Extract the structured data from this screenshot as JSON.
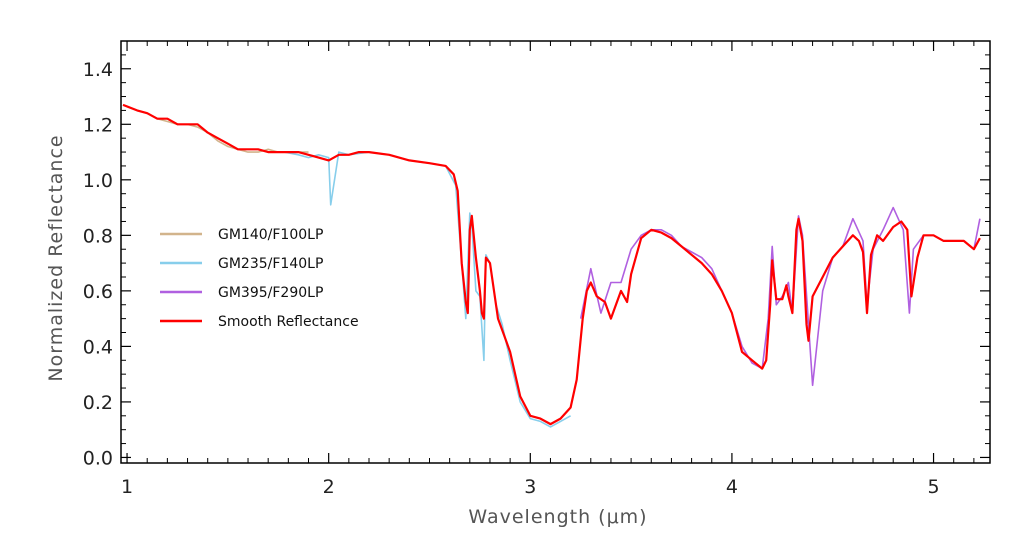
{
  "chart_data": {
    "type": "line",
    "title": "",
    "xlabel": "Wavelength (μm)",
    "ylabel": "Normalized Reflectance",
    "xlim": [
      0.97,
      5.28
    ],
    "ylim": [
      -0.02,
      1.5
    ],
    "x_ticks": [
      "1",
      "2",
      "3",
      "4",
      "5"
    ],
    "y_ticks": [
      "0.0",
      "0.2",
      "0.4",
      "0.6",
      "0.8",
      "1.0",
      "1.2",
      "1.4"
    ],
    "grid": false,
    "legend_position": "left-center",
    "series": [
      {
        "name": "GM140/F100LP",
        "color": "#d2b48c",
        "x": [
          0.98,
          1.05,
          1.1,
          1.15,
          1.2,
          1.25,
          1.3,
          1.35,
          1.4,
          1.45,
          1.5,
          1.55,
          1.6,
          1.65,
          1.7,
          1.75,
          1.8,
          1.85,
          1.9
        ],
        "y": [
          1.27,
          1.25,
          1.24,
          1.22,
          1.21,
          1.2,
          1.2,
          1.19,
          1.17,
          1.14,
          1.12,
          1.11,
          1.1,
          1.1,
          1.11,
          1.1,
          1.1,
          1.1,
          1.1
        ]
      },
      {
        "name": "GM235/F140LP",
        "color": "#87ceeb",
        "x": [
          1.78,
          1.85,
          1.9,
          1.95,
          2.0,
          2.01,
          2.05,
          2.1,
          2.2,
          2.3,
          2.4,
          2.5,
          2.58,
          2.63,
          2.66,
          2.68,
          2.7,
          2.71,
          2.73,
          2.75,
          2.77,
          2.78,
          2.8,
          2.83,
          2.86,
          2.9,
          2.95,
          3.0,
          3.05,
          3.1,
          3.15,
          3.2
        ],
        "y": [
          1.1,
          1.09,
          1.08,
          1.09,
          1.08,
          0.91,
          1.1,
          1.09,
          1.1,
          1.09,
          1.07,
          1.06,
          1.05,
          0.98,
          0.7,
          0.5,
          0.88,
          0.84,
          0.6,
          0.58,
          0.35,
          0.73,
          0.7,
          0.55,
          0.48,
          0.35,
          0.2,
          0.14,
          0.13,
          0.11,
          0.13,
          0.15
        ]
      },
      {
        "name": "GM395/F290LP",
        "color": "#b060e0",
        "x": [
          3.25,
          3.3,
          3.35,
          3.4,
          3.45,
          3.5,
          3.55,
          3.6,
          3.65,
          3.7,
          3.75,
          3.8,
          3.85,
          3.9,
          3.95,
          4.0,
          4.05,
          4.1,
          4.15,
          4.18,
          4.2,
          4.22,
          4.25,
          4.28,
          4.3,
          4.33,
          4.35,
          4.38,
          4.4,
          4.45,
          4.5,
          4.55,
          4.6,
          4.65,
          4.67,
          4.7,
          4.75,
          4.8,
          4.85,
          4.88,
          4.9,
          4.95,
          5.0,
          5.05,
          5.1,
          5.15,
          5.2,
          5.23
        ],
        "y": [
          0.5,
          0.68,
          0.52,
          0.63,
          0.63,
          0.75,
          0.8,
          0.82,
          0.82,
          0.8,
          0.76,
          0.74,
          0.72,
          0.68,
          0.6,
          0.52,
          0.4,
          0.34,
          0.32,
          0.5,
          0.76,
          0.55,
          0.58,
          0.63,
          0.52,
          0.87,
          0.8,
          0.48,
          0.26,
          0.6,
          0.72,
          0.76,
          0.86,
          0.78,
          0.55,
          0.75,
          0.82,
          0.9,
          0.82,
          0.52,
          0.75,
          0.8,
          0.8,
          0.78,
          0.78,
          0.78,
          0.75,
          0.86
        ]
      },
      {
        "name": "Smooth Reflectance",
        "color": "#ff0000",
        "x": [
          0.98,
          1.05,
          1.1,
          1.15,
          1.2,
          1.25,
          1.3,
          1.35,
          1.4,
          1.45,
          1.5,
          1.55,
          1.6,
          1.65,
          1.7,
          1.75,
          1.8,
          1.85,
          1.9,
          1.95,
          2.0,
          2.05,
          2.1,
          2.15,
          2.2,
          2.3,
          2.4,
          2.5,
          2.58,
          2.62,
          2.64,
          2.66,
          2.68,
          2.69,
          2.7,
          2.71,
          2.73,
          2.75,
          2.76,
          2.77,
          2.78,
          2.8,
          2.82,
          2.84,
          2.87,
          2.9,
          2.95,
          3.0,
          3.05,
          3.1,
          3.15,
          3.2,
          3.23,
          3.26,
          3.28,
          3.3,
          3.33,
          3.37,
          3.4,
          3.45,
          3.48,
          3.5,
          3.55,
          3.6,
          3.65,
          3.7,
          3.75,
          3.8,
          3.85,
          3.9,
          3.95,
          4.0,
          4.05,
          4.1,
          4.15,
          4.17,
          4.19,
          4.2,
          4.22,
          4.25,
          4.27,
          4.28,
          4.3,
          4.32,
          4.33,
          4.35,
          4.37,
          4.38,
          4.4,
          4.45,
          4.5,
          4.55,
          4.6,
          4.63,
          4.65,
          4.67,
          4.69,
          4.72,
          4.75,
          4.8,
          4.84,
          4.87,
          4.89,
          4.92,
          4.95,
          5.0,
          5.05,
          5.1,
          5.15,
          5.2,
          5.23
        ],
        "y": [
          1.27,
          1.25,
          1.24,
          1.22,
          1.22,
          1.2,
          1.2,
          1.2,
          1.17,
          1.15,
          1.13,
          1.11,
          1.11,
          1.11,
          1.1,
          1.1,
          1.1,
          1.1,
          1.09,
          1.08,
          1.07,
          1.09,
          1.09,
          1.1,
          1.1,
          1.09,
          1.07,
          1.06,
          1.05,
          1.02,
          0.96,
          0.7,
          0.56,
          0.52,
          0.82,
          0.87,
          0.72,
          0.6,
          0.52,
          0.5,
          0.72,
          0.7,
          0.6,
          0.5,
          0.44,
          0.38,
          0.22,
          0.15,
          0.14,
          0.12,
          0.14,
          0.18,
          0.28,
          0.5,
          0.6,
          0.63,
          0.58,
          0.56,
          0.5,
          0.6,
          0.56,
          0.66,
          0.79,
          0.82,
          0.81,
          0.79,
          0.76,
          0.73,
          0.7,
          0.66,
          0.6,
          0.52,
          0.38,
          0.35,
          0.32,
          0.35,
          0.55,
          0.71,
          0.57,
          0.57,
          0.62,
          0.58,
          0.52,
          0.82,
          0.86,
          0.78,
          0.48,
          0.42,
          0.58,
          0.65,
          0.72,
          0.76,
          0.8,
          0.78,
          0.74,
          0.52,
          0.73,
          0.8,
          0.78,
          0.83,
          0.85,
          0.82,
          0.58,
          0.72,
          0.8,
          0.8,
          0.78,
          0.78,
          0.78,
          0.75,
          0.79
        ]
      }
    ]
  }
}
